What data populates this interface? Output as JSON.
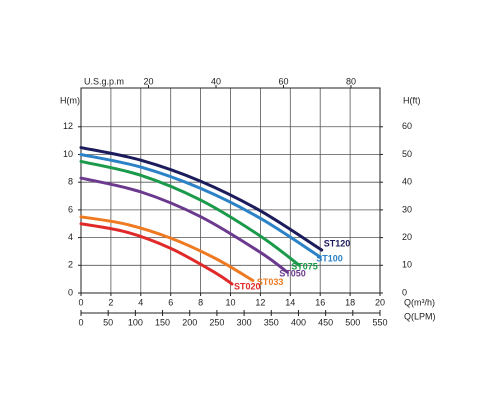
{
  "chart_data": {
    "type": "line",
    "xlabel": "Q(m³/h)",
    "xlim": [
      0,
      20
    ],
    "xticks": [
      0,
      2,
      4,
      6,
      8,
      10,
      12,
      14,
      16,
      18,
      20
    ],
    "x2label": "U.S.g.p.m",
    "x2lim": [
      0,
      88.6
    ],
    "x2ticks": [
      20,
      40,
      60,
      80
    ],
    "x3label": "Q(LPM)",
    "x3lim": [
      0,
      550
    ],
    "x3ticks": [
      0,
      50,
      100,
      150,
      200,
      250,
      300,
      350,
      400,
      450,
      500,
      550
    ],
    "ylabel": "H(m)",
    "ylim": [
      0,
      14.8
    ],
    "yticks": [
      0,
      2,
      4,
      6,
      8,
      10,
      12
    ],
    "y2label": "H(ft)",
    "y2lim": [
      0,
      74
    ],
    "y2ticks": [
      0,
      10,
      20,
      30,
      40,
      50,
      60
    ],
    "grid": true,
    "series": [
      {
        "name": "ST120",
        "color": "#1c1c5c",
        "x": [
          0,
          4,
          8,
          12,
          16.1
        ],
        "values": [
          10.5,
          9.59,
          8.07,
          5.93,
          3.1
        ]
      },
      {
        "name": "ST100",
        "color": "#2b82c6",
        "x": [
          0,
          4,
          8,
          12,
          16
        ],
        "values": [
          10.0,
          9.09,
          7.55,
          5.39,
          2.6
        ]
      },
      {
        "name": "ST075",
        "color": "#1a9a4a",
        "x": [
          0,
          4,
          8,
          12,
          14.6
        ],
        "values": [
          9.5,
          8.5,
          6.71,
          4.11,
          2.0
        ]
      },
      {
        "name": "ST050",
        "color": "#6b3a8e",
        "x": [
          0,
          4,
          8,
          12,
          13.8
        ],
        "values": [
          8.3,
          7.3,
          5.51,
          2.93,
          1.5
        ]
      },
      {
        "name": "ST033",
        "color": "#ee7a22",
        "x": [
          0,
          3,
          6,
          9,
          11.5
        ],
        "values": [
          5.5,
          4.97,
          3.96,
          2.49,
          0.9
        ]
      },
      {
        "name": "ST020",
        "color": "#e02a2a",
        "x": [
          0,
          3,
          6,
          9,
          10.1
        ],
        "values": [
          5.0,
          4.41,
          3.22,
          1.45,
          0.65
        ]
      }
    ]
  }
}
